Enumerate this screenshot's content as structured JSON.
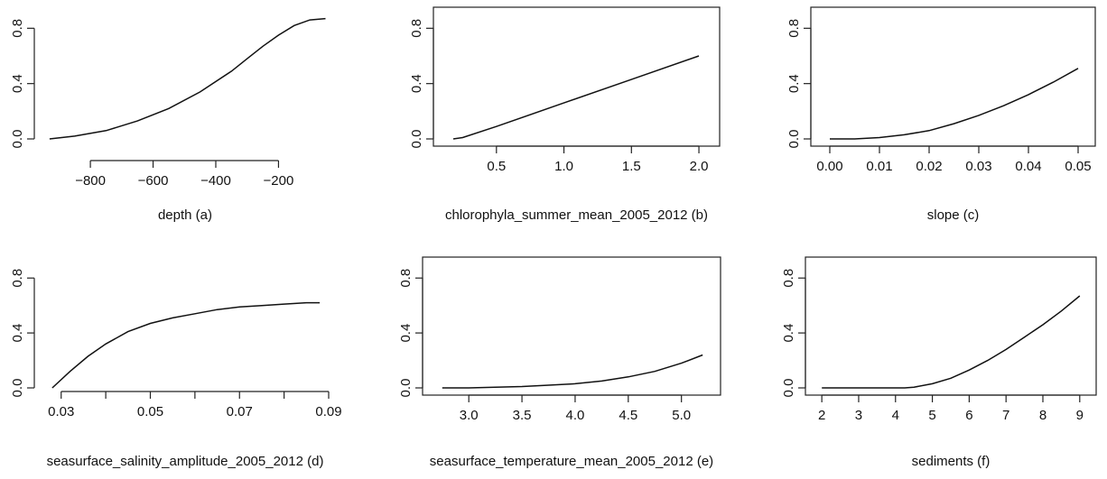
{
  "chart_data": [
    {
      "id": "a",
      "type": "line",
      "xlabel": "depth (a)",
      "ylabel": "",
      "xlim": [
        -950,
        -40
      ],
      "ylim": [
        0,
        0.9
      ],
      "xticks": [
        -800,
        -600,
        -400,
        -200
      ],
      "xtick_labels": [
        "−800",
        "−600",
        "−400",
        "−200"
      ],
      "yticks": [
        0,
        0.4,
        0.8
      ],
      "ytick_labels": [
        "0.0",
        "0.4",
        "0.8"
      ],
      "series": [
        {
          "x": [
            -930,
            -850,
            -750,
            -650,
            -550,
            -450,
            -350,
            -300,
            -250,
            -200,
            -150,
            -100,
            -50
          ],
          "y": [
            0.0,
            0.02,
            0.06,
            0.13,
            0.22,
            0.34,
            0.49,
            0.58,
            0.67,
            0.75,
            0.82,
            0.86,
            0.87
          ]
        }
      ]
    },
    {
      "id": "b",
      "type": "line",
      "xlabel": "chlorophyla_summer_mean_2005_2012 (b)",
      "ylabel": "",
      "xlim": [
        0.1,
        2.1
      ],
      "ylim": [
        0,
        0.9
      ],
      "xticks": [
        0.5,
        1.0,
        1.5,
        2.0
      ],
      "xtick_labels": [
        "0.5",
        "1.0",
        "1.5",
        "2.0"
      ],
      "yticks": [
        0,
        0.4,
        0.8
      ],
      "ytick_labels": [
        "0.0",
        "0.4",
        "0.8"
      ],
      "series": [
        {
          "x": [
            0.18,
            0.25,
            0.5,
            1.0,
            1.5,
            2.0
          ],
          "y": [
            0.0,
            0.01,
            0.09,
            0.26,
            0.43,
            0.6
          ]
        }
      ]
    },
    {
      "id": "c",
      "type": "line",
      "xlabel": "slope (c)",
      "ylabel": "",
      "xlim": [
        -0.002,
        0.052
      ],
      "ylim": [
        0,
        0.9
      ],
      "xticks": [
        0.0,
        0.01,
        0.02,
        0.03,
        0.04,
        0.05
      ],
      "xtick_labels": [
        "0.00",
        "0.01",
        "0.02",
        "0.03",
        "0.04",
        "0.05"
      ],
      "yticks": [
        0,
        0.4,
        0.8
      ],
      "ytick_labels": [
        "0.0",
        "0.4",
        "0.8"
      ],
      "series": [
        {
          "x": [
            0.0,
            0.005,
            0.01,
            0.015,
            0.02,
            0.025,
            0.03,
            0.035,
            0.04,
            0.045,
            0.05
          ],
          "y": [
            0.0,
            0.0,
            0.01,
            0.03,
            0.06,
            0.11,
            0.17,
            0.24,
            0.32,
            0.41,
            0.51
          ]
        }
      ]
    },
    {
      "id": "d",
      "type": "line",
      "xlabel": "seasurface_salinity_amplitude_2005_2012 (d)",
      "ylabel": "",
      "xlim": [
        0.026,
        0.09
      ],
      "ylim": [
        0,
        0.9
      ],
      "xticks": [
        0.03,
        0.04,
        0.05,
        0.06,
        0.07,
        0.08,
        0.09
      ],
      "xtick_labels": [
        "0.03",
        "",
        "0.05",
        "",
        "0.07",
        "",
        "0.09"
      ],
      "yticks": [
        0,
        0.4,
        0.8
      ],
      "ytick_labels": [
        "0.0",
        "0.4",
        "0.8"
      ],
      "series": [
        {
          "x": [
            0.028,
            0.032,
            0.036,
            0.04,
            0.045,
            0.05,
            0.055,
            0.06,
            0.065,
            0.07,
            0.075,
            0.08,
            0.085,
            0.088
          ],
          "y": [
            0.0,
            0.12,
            0.23,
            0.32,
            0.41,
            0.47,
            0.51,
            0.54,
            0.57,
            0.59,
            0.6,
            0.61,
            0.62,
            0.62
          ]
        }
      ]
    },
    {
      "id": "e",
      "type": "line",
      "xlabel": "seasurface_temperature_mean_2005_2012 (e)",
      "ylabel": "",
      "xlim": [
        2.65,
        5.3
      ],
      "ylim": [
        0,
        0.9
      ],
      "xticks": [
        3.0,
        3.5,
        4.0,
        4.5,
        5.0
      ],
      "xtick_labels": [
        "3.0",
        "3.5",
        "4.0",
        "4.5",
        "5.0"
      ],
      "yticks": [
        0,
        0.4,
        0.8
      ],
      "ytick_labels": [
        "0.0",
        "0.4",
        "0.8"
      ],
      "series": [
        {
          "x": [
            2.75,
            3.0,
            3.25,
            3.5,
            3.75,
            4.0,
            4.25,
            4.5,
            4.75,
            5.0,
            5.2
          ],
          "y": [
            0.0,
            0.0,
            0.005,
            0.01,
            0.02,
            0.03,
            0.05,
            0.08,
            0.12,
            0.18,
            0.24
          ]
        }
      ]
    },
    {
      "id": "f",
      "type": "line",
      "xlabel": "sediments (f)",
      "ylabel": "",
      "xlim": [
        1.8,
        9.25
      ],
      "ylim": [
        0,
        0.9
      ],
      "xticks": [
        2,
        3,
        4,
        5,
        6,
        7,
        8,
        9
      ],
      "xtick_labels": [
        "2",
        "3",
        "4",
        "5",
        "6",
        "7",
        "8",
        "9"
      ],
      "yticks": [
        0,
        0.4,
        0.8
      ],
      "ytick_labels": [
        "0.0",
        "0.4",
        "0.8"
      ],
      "series": [
        {
          "x": [
            2,
            3,
            4,
            4.25,
            4.5,
            5,
            5.5,
            6,
            6.5,
            7,
            7.5,
            8,
            8.5,
            9
          ],
          "y": [
            0.0,
            0.0,
            0.0,
            0.0,
            0.005,
            0.03,
            0.07,
            0.13,
            0.2,
            0.28,
            0.37,
            0.46,
            0.56,
            0.67
          ]
        }
      ]
    }
  ]
}
